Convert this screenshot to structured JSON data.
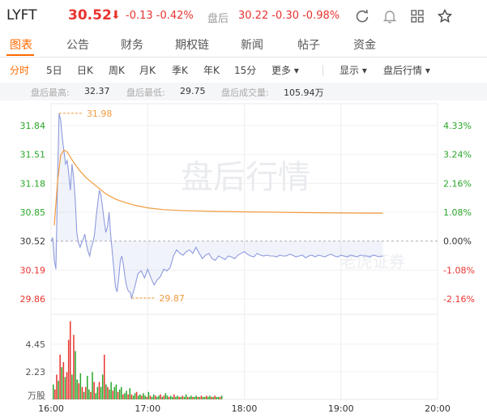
{
  "header": {
    "ticker": "LYFT",
    "price": "30.52",
    "arrow": "⬇",
    "change": "-0.13 -0.42%",
    "after_hours_label": "盘后",
    "after_hours_values": "30.22 -0.30 -0.98%",
    "icons": [
      "refresh-icon",
      "bell-icon",
      "grid-icon",
      "star-icon"
    ]
  },
  "tabs": [
    "图表",
    "公告",
    "财务",
    "期权链",
    "新闻",
    "帖子",
    "资金"
  ],
  "periods": [
    "分时",
    "5日",
    "日K",
    "周K",
    "月K",
    "季K",
    "年K",
    "15分",
    "更多 ▾"
  ],
  "controls": {
    "display": "显示 ▾",
    "after_hours": "盘后行情 ▾"
  },
  "stats": {
    "high_label": "盘后最高:",
    "high": "32.37",
    "low_label": "盘后最低:",
    "low": "29.75",
    "volume_label": "盘后成交量:",
    "volume": "105.94万"
  },
  "watermark": "盘后行情",
  "brand_watermark": "老虎证券",
  "colors": {
    "accent": "#ff6a00",
    "up": "#e8332f",
    "down": "#2aa52a",
    "price_line": "#8e9bdd",
    "avg_line": "#f19a3e"
  },
  "chart_data": {
    "type": "line",
    "x_ticks": [
      "16:00",
      "17:00",
      "18:00",
      "19:00",
      "20:00"
    ],
    "y_left_ticks": [
      "31.84",
      "31.51",
      "31.18",
      "30.85",
      "30.52",
      "30.19",
      "29.86"
    ],
    "y_right_ticks": [
      "4.33%",
      "3.24%",
      "2.16%",
      "1.08%",
      "0.00%",
      "-1.08%",
      "-2.16%"
    ],
    "reference_price": 30.52,
    "ylim": [
      29.86,
      31.84
    ],
    "xlim_minutes": [
      0,
      240
    ],
    "max_annotation": "31.98",
    "min_annotation": "29.87",
    "price_series": {
      "x": [
        0,
        1,
        2,
        3,
        4,
        5,
        6,
        7,
        8,
        9,
        10,
        11,
        12,
        13,
        14,
        15,
        16,
        17,
        18,
        19,
        20,
        21,
        22,
        23,
        24,
        25,
        26,
        27,
        28,
        29,
        30,
        31,
        32,
        33,
        34,
        35,
        36,
        37,
        38,
        39,
        40,
        41,
        42,
        43,
        44,
        45,
        46,
        47,
        48,
        49,
        50,
        52,
        54,
        56,
        58,
        60,
        62,
        64,
        66,
        68,
        70,
        72,
        74,
        76,
        78,
        80,
        82,
        84,
        86,
        88,
        90,
        92,
        94,
        96,
        98,
        100,
        102,
        104,
        106,
        108,
        110,
        112,
        114,
        116,
        118,
        120,
        122,
        124,
        126,
        128,
        130,
        132,
        134,
        136,
        138,
        140,
        142,
        144,
        146,
        148,
        150,
        152,
        154,
        156,
        158,
        160,
        162,
        164,
        166,
        168,
        170,
        172,
        174,
        176,
        178,
        180,
        182,
        184,
        186,
        188,
        190,
        192,
        194,
        196,
        198,
        200,
        202,
        204,
        206
      ],
      "y": [
        30.52,
        30.56,
        30.3,
        30.2,
        31.2,
        31.98,
        31.9,
        31.7,
        31.55,
        31.4,
        31.44,
        31.28,
        31.1,
        31.4,
        31.25,
        31.0,
        30.62,
        30.5,
        30.45,
        30.5,
        30.55,
        30.6,
        30.48,
        30.4,
        30.35,
        30.45,
        30.5,
        30.6,
        30.8,
        30.95,
        31.1,
        31.05,
        30.9,
        30.75,
        30.62,
        30.68,
        30.85,
        30.6,
        30.4,
        30.2,
        30.0,
        29.94,
        30.1,
        30.3,
        30.35,
        30.24,
        30.1,
        30.0,
        29.95,
        29.94,
        29.87,
        30.0,
        30.15,
        30.18,
        30.1,
        30.2,
        30.1,
        30.02,
        30.08,
        30.12,
        30.2,
        30.18,
        30.22,
        30.35,
        30.42,
        30.38,
        30.36,
        30.4,
        30.42,
        30.38,
        30.45,
        30.38,
        30.32,
        30.36,
        30.38,
        30.32,
        30.3,
        30.35,
        30.33,
        30.31,
        30.35,
        30.34,
        30.32,
        30.36,
        30.38,
        30.4,
        30.37,
        30.35,
        30.34,
        30.38,
        30.36,
        30.35,
        30.36,
        30.35,
        30.35,
        30.34,
        30.36,
        30.35,
        30.35,
        30.37,
        30.36,
        30.34,
        30.35,
        30.36,
        30.33,
        30.35,
        30.36,
        30.34,
        30.36,
        30.35,
        30.34,
        30.36,
        30.37,
        30.35,
        30.34,
        30.36,
        30.35,
        30.34,
        30.36,
        30.35,
        30.34,
        30.36,
        30.35,
        30.35,
        30.34,
        30.36,
        30.35,
        30.34,
        30.35
      ]
    },
    "avg_series": {
      "x": [
        2,
        4,
        6,
        8,
        10,
        14,
        18,
        22,
        26,
        30,
        34,
        40,
        46,
        52,
        60,
        70,
        80,
        100,
        120,
        140,
        160,
        180,
        200,
        206
      ],
      "y": [
        30.7,
        31.2,
        31.5,
        31.56,
        31.54,
        31.42,
        31.32,
        31.24,
        31.18,
        31.12,
        31.06,
        31.0,
        30.96,
        30.93,
        30.9,
        30.88,
        30.87,
        30.86,
        30.855,
        30.85,
        30.845,
        30.842,
        30.84,
        30.84
      ]
    },
    "volume": {
      "unit": "万股",
      "y_ticks": [
        "4.45",
        "2.23"
      ],
      "ylim": [
        0,
        6.6
      ],
      "values": [
        1.2,
        0.8,
        2.0,
        1.5,
        3.6,
        2.6,
        3.0,
        1.8,
        2.2,
        4.8,
        6.3,
        2.0,
        5.2,
        3.9,
        1.6,
        1.3,
        2.1,
        1.0,
        0.6,
        1.0,
        1.9,
        0.8,
        0.6,
        2.2,
        1.4,
        0.5,
        1.0,
        1.4,
        1.0,
        2.0,
        3.6,
        1.2,
        1.0,
        0.8,
        1.4,
        0.7,
        1.0,
        1.2,
        0.6,
        0.8,
        1.0,
        0.4,
        0.5,
        0.7,
        0.4,
        0.9,
        0.4,
        0.3,
        0.5,
        0.6,
        0.3,
        0.4,
        0.3,
        0.5,
        0.3,
        0.2,
        0.6,
        0.3,
        0.2,
        0.4,
        0.3,
        0.2,
        0.3,
        0.4,
        0.2,
        0.3,
        0.5,
        0.3,
        0.2,
        0.3,
        0.2,
        0.4,
        0.2,
        0.3,
        0.2,
        0.2,
        0.3,
        0.2,
        0.4,
        0.2,
        0.2,
        0.3,
        0.2,
        0.2,
        0.3,
        0.2,
        0.2,
        0.3,
        0.2,
        0.2,
        0.3,
        0.2,
        0.3,
        0.2,
        0.2,
        0.3,
        0.2,
        0.2,
        0.2,
        0.3
      ],
      "colors": [
        "g",
        "r",
        "r",
        "g",
        "r",
        "g",
        "r",
        "g",
        "r",
        "r",
        "r",
        "g",
        "r",
        "g",
        "g",
        "r",
        "g",
        "r",
        "g",
        "r",
        "g",
        "g",
        "r",
        "g",
        "r",
        "g",
        "g",
        "r",
        "g",
        "g",
        "r",
        "g",
        "r",
        "g",
        "g",
        "r",
        "g",
        "g",
        "r",
        "g",
        "g",
        "r",
        "g",
        "g",
        "r",
        "g",
        "r",
        "g",
        "g",
        "r",
        "g",
        "g",
        "r",
        "g",
        "g",
        "r",
        "g",
        "r",
        "g",
        "g",
        "r",
        "g",
        "g",
        "r",
        "g",
        "r",
        "g",
        "g",
        "r",
        "g",
        "g",
        "r",
        "g",
        "g",
        "r",
        "g",
        "r",
        "g",
        "g",
        "r",
        "g",
        "g",
        "r",
        "g",
        "g",
        "r",
        "g",
        "r",
        "g",
        "g",
        "r",
        "g",
        "g",
        "r",
        "g",
        "r",
        "g",
        "g",
        "r",
        "g"
      ]
    }
  }
}
